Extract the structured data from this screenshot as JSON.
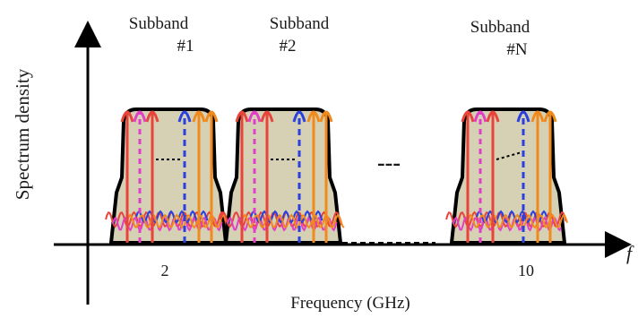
{
  "axes": {
    "y_label": "Spectrum density",
    "x_label": "Frequency (GHz)",
    "x_axis_symbol": "f",
    "ticks": [
      "2",
      "10"
    ]
  },
  "subbands": [
    {
      "title": "Subband",
      "index_label": "#1"
    },
    {
      "title": "Subband",
      "index_label": "#2"
    },
    {
      "title": "Subband",
      "index_label": "#N"
    }
  ],
  "ellipsis": "---",
  "colors": {
    "filter_fill": "#d6d1b4",
    "filter_outline": "#000000",
    "subcarrier_red": "#e8443a",
    "subcarrier_magenta": "#e040c8",
    "subcarrier_blue": "#2a40e0",
    "subcarrier_orange": "#f08a1c",
    "axis": "#000000"
  }
}
